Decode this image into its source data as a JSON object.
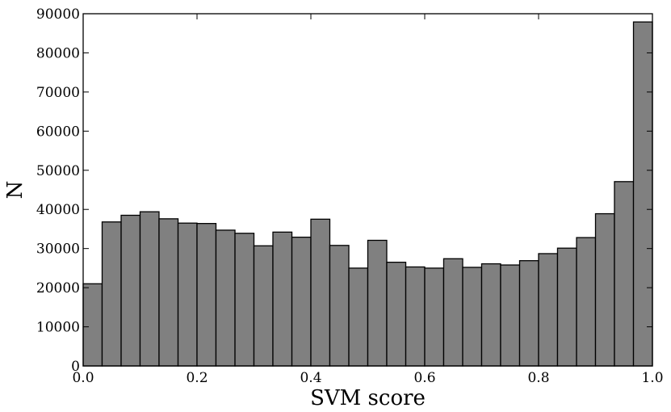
{
  "chart_data": {
    "type": "bar",
    "title": "",
    "xlabel": "SVM score",
    "ylabel": "N",
    "xlim": [
      0.0,
      1.0
    ],
    "ylim": [
      0,
      90000
    ],
    "xticks": [
      "0.0",
      "0.2",
      "0.4",
      "0.6",
      "0.8",
      "1.0"
    ],
    "yticks": [
      "0",
      "10000",
      "20000",
      "30000",
      "40000",
      "50000",
      "60000",
      "70000",
      "80000",
      "90000"
    ],
    "bin_width": 0.0333,
    "bin_starts": [
      0.0,
      0.0333,
      0.0667,
      0.1,
      0.1333,
      0.1667,
      0.2,
      0.2333,
      0.2667,
      0.3,
      0.3333,
      0.3667,
      0.4,
      0.4333,
      0.4667,
      0.5,
      0.5333,
      0.5667,
      0.6,
      0.6333,
      0.6667,
      0.7,
      0.7333,
      0.7667,
      0.8,
      0.8333,
      0.8667,
      0.9,
      0.9333,
      0.9667
    ],
    "values": [
      21000,
      36800,
      38500,
      39400,
      37600,
      36500,
      36400,
      34700,
      33900,
      30700,
      34200,
      32900,
      37500,
      30800,
      25000,
      32100,
      26500,
      25300,
      25000,
      27400,
      25200,
      26100,
      25800,
      26900,
      28700,
      30100,
      32800,
      38900,
      47100,
      87900
    ],
    "colors": {
      "bar_fill": "#808080",
      "bar_edge": "#000000"
    },
    "grid": false,
    "legend": "none"
  }
}
